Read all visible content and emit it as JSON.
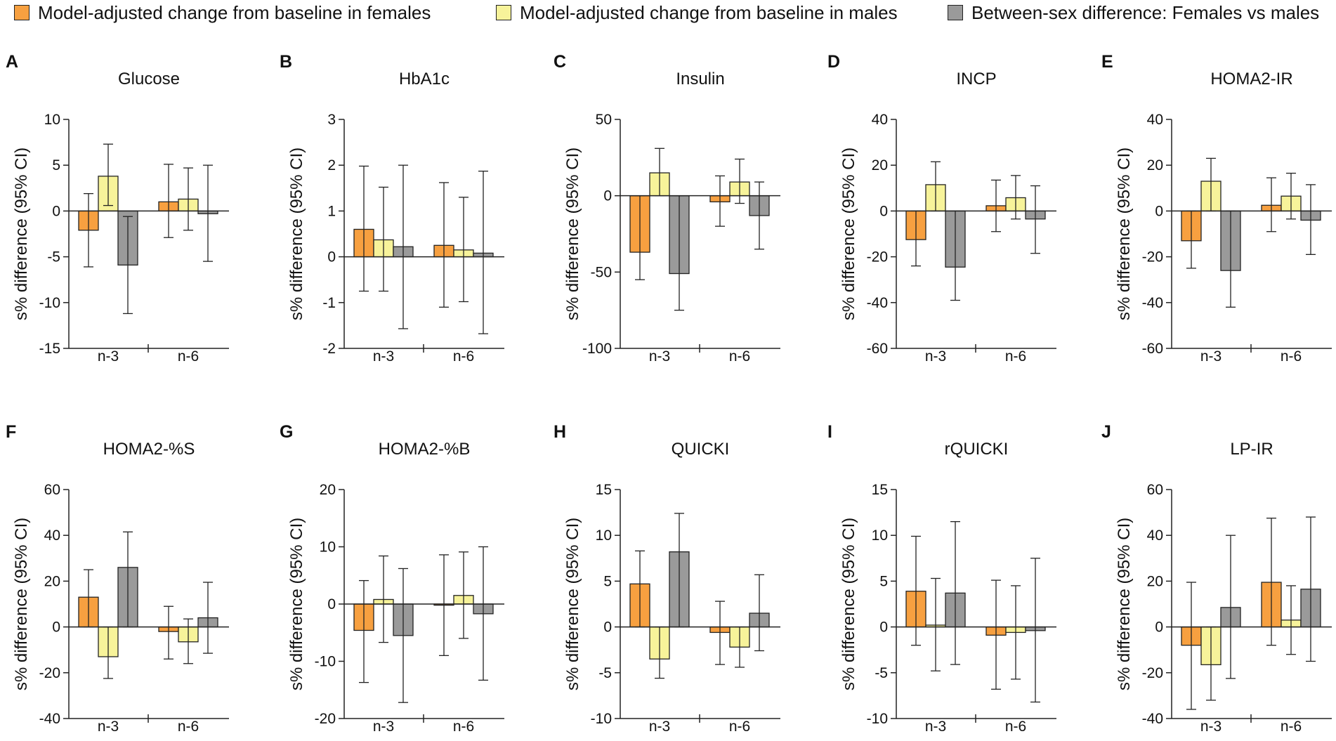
{
  "legend": [
    {
      "label": "Model-adjusted change from baseline in females",
      "color": "#F7A040"
    },
    {
      "label": "Model-adjusted change from baseline in males",
      "color": "#F7F39A"
    },
    {
      "label": "Between-sex difference: Females vs males",
      "color": "#9A9A9A"
    }
  ],
  "chart_data": [
    {
      "type": "bar",
      "panel": "A",
      "title": "Glucose",
      "ylabel": "s% difference (95% CI)",
      "categories": [
        "n-3",
        "n-6"
      ],
      "ylim": [
        -15,
        10
      ],
      "yticks": [
        -15,
        -10,
        -5,
        0,
        5,
        10
      ],
      "ytick_labels": [
        "-15",
        "-10",
        "-5",
        "0",
        "5",
        "10"
      ],
      "series": [
        {
          "name": "Model-adjusted change from baseline in females",
          "values": [
            -2.1,
            1.0
          ],
          "ci_low": [
            -6.1,
            -2.9
          ],
          "ci_high": [
            1.9,
            5.1
          ]
        },
        {
          "name": "Model-adjusted change from baseline in males",
          "values": [
            3.8,
            1.3
          ],
          "ci_low": [
            0.6,
            -2.1
          ],
          "ci_high": [
            7.3,
            4.7
          ]
        },
        {
          "name": "Between-sex difference: Females vs males",
          "values": [
            -5.9,
            -0.3
          ],
          "ci_low": [
            -11.2,
            -5.5
          ],
          "ci_high": [
            -0.6,
            5.0
          ]
        }
      ]
    },
    {
      "type": "bar",
      "panel": "B",
      "title": "HbA1c",
      "ylabel": "s% difference (95% CI)",
      "categories": [
        "n-3",
        "n-6"
      ],
      "ylim": [
        -2,
        3
      ],
      "yticks": [
        -2,
        -1,
        0,
        1,
        2,
        3
      ],
      "ytick_labels": [
        "-2",
        "-1",
        "0",
        "1",
        "2",
        "3"
      ],
      "series": [
        {
          "name": "Model-adjusted change from baseline in females",
          "values": [
            0.6,
            0.25
          ],
          "ci_low": [
            -0.75,
            -1.1
          ],
          "ci_high": [
            1.98,
            1.62
          ]
        },
        {
          "name": "Model-adjusted change from baseline in males",
          "values": [
            0.37,
            0.15
          ],
          "ci_low": [
            -0.75,
            -0.98
          ],
          "ci_high": [
            1.52,
            1.3
          ]
        },
        {
          "name": "Between-sex difference: Females vs males",
          "values": [
            0.22,
            0.08
          ],
          "ci_low": [
            -1.57,
            -1.68
          ],
          "ci_high": [
            2.0,
            1.87
          ]
        }
      ]
    },
    {
      "type": "bar",
      "panel": "C",
      "title": "Insulin",
      "ylabel": "s% difference (95% CI)",
      "categories": [
        "n-3",
        "n-6"
      ],
      "ylim": [
        -100,
        50
      ],
      "yticks": [
        -100,
        -50,
        0,
        50
      ],
      "ytick_labels": [
        "-100",
        "-50",
        "0",
        "50"
      ],
      "series": [
        {
          "name": "Model-adjusted change from baseline in females",
          "values": [
            -37,
            -4
          ],
          "ci_low": [
            -55,
            -20
          ],
          "ci_high": [
            0,
            13
          ]
        },
        {
          "name": "Model-adjusted change from baseline in males",
          "values": [
            15,
            9
          ],
          "ci_low": [
            0,
            -5
          ],
          "ci_high": [
            31,
            24
          ]
        },
        {
          "name": "Between-sex difference: Females vs males",
          "values": [
            -51,
            -13
          ],
          "ci_low": [
            -75,
            -35
          ],
          "ci_high": [
            0,
            9
          ]
        }
      ]
    },
    {
      "type": "bar",
      "panel": "D",
      "title": "INCP",
      "ylabel": "s% difference (95% CI)",
      "categories": [
        "n-3",
        "n-6"
      ],
      "ylim": [
        -60,
        40
      ],
      "yticks": [
        -60,
        -40,
        -20,
        0,
        20,
        40
      ],
      "ytick_labels": [
        "-60",
        "-40",
        "-20",
        "0",
        "20",
        "40"
      ],
      "series": [
        {
          "name": "Model-adjusted change from baseline in females",
          "values": [
            -12.5,
            2.3
          ],
          "ci_low": [
            -24,
            -9
          ],
          "ci_high": [
            0,
            13.5
          ]
        },
        {
          "name": "Model-adjusted change from baseline in males",
          "values": [
            11.5,
            5.8
          ],
          "ci_low": [
            0,
            -3.5
          ],
          "ci_high": [
            21.5,
            15.5
          ]
        },
        {
          "name": "Between-sex difference: Females vs males",
          "values": [
            -24.5,
            -3.5
          ],
          "ci_low": [
            -39,
            -18.5
          ],
          "ci_high": [
            0,
            11
          ]
        }
      ]
    },
    {
      "type": "bar",
      "panel": "E",
      "title": "HOMA2-IR",
      "ylabel": "s% difference (95% CI)",
      "categories": [
        "n-3",
        "n-6"
      ],
      "ylim": [
        -60,
        40
      ],
      "yticks": [
        -60,
        -40,
        -20,
        0,
        20,
        40
      ],
      "ytick_labels": [
        "-60",
        "-40",
        "-20",
        "0",
        "20",
        "40"
      ],
      "series": [
        {
          "name": "Model-adjusted change from baseline in females",
          "values": [
            -13,
            2.5
          ],
          "ci_low": [
            -25,
            -9
          ],
          "ci_high": [
            0,
            14.5
          ]
        },
        {
          "name": "Model-adjusted change from baseline in males",
          "values": [
            13,
            6.5
          ],
          "ci_low": [
            0,
            -3.5
          ],
          "ci_high": [
            23,
            16.5
          ]
        },
        {
          "name": "Between-sex difference: Females vs males",
          "values": [
            -26,
            -4
          ],
          "ci_low": [
            -42,
            -19
          ],
          "ci_high": [
            0,
            11.5
          ]
        }
      ]
    },
    {
      "type": "bar",
      "panel": "F",
      "title": "HOMA2-%S",
      "ylabel": "s% difference (95% CI)",
      "categories": [
        "n-3",
        "n-6"
      ],
      "ylim": [
        -40,
        60
      ],
      "yticks": [
        -40,
        -20,
        0,
        20,
        40,
        60
      ],
      "ytick_labels": [
        "-40",
        "-20",
        "0",
        "20",
        "40",
        "60"
      ],
      "series": [
        {
          "name": "Model-adjusted change from baseline in females",
          "values": [
            13,
            -2
          ],
          "ci_low": [
            0,
            -14
          ],
          "ci_high": [
            25,
            9
          ]
        },
        {
          "name": "Model-adjusted change from baseline in males",
          "values": [
            -13,
            -6.5
          ],
          "ci_low": [
            -22.5,
            -16
          ],
          "ci_high": [
            0,
            3.5
          ]
        },
        {
          "name": "Between-sex difference: Females vs males",
          "values": [
            26,
            4
          ],
          "ci_low": [
            0,
            -11.5
          ],
          "ci_high": [
            41.5,
            19.5
          ]
        }
      ]
    },
    {
      "type": "bar",
      "panel": "G",
      "title": "HOMA2-%B",
      "ylabel": "s% difference (95% CI)",
      "categories": [
        "n-3",
        "n-6"
      ],
      "ylim": [
        -20,
        20
      ],
      "yticks": [
        -20,
        -10,
        0,
        10,
        20
      ],
      "ytick_labels": [
        "-20",
        "-10",
        "0",
        "10",
        "20"
      ],
      "series": [
        {
          "name": "Model-adjusted change from baseline in females",
          "values": [
            -4.6,
            -0.2
          ],
          "ci_low": [
            -13.7,
            -9
          ],
          "ci_high": [
            4.1,
            8.6
          ]
        },
        {
          "name": "Model-adjusted change from baseline in males",
          "values": [
            0.8,
            1.5
          ],
          "ci_low": [
            -6.7,
            -6
          ],
          "ci_high": [
            8.4,
            9.1
          ]
        },
        {
          "name": "Between-sex difference: Females vs males",
          "values": [
            -5.5,
            -1.7
          ],
          "ci_low": [
            -17.2,
            -13.3
          ],
          "ci_high": [
            6.2,
            10
          ]
        }
      ]
    },
    {
      "type": "bar",
      "panel": "H",
      "title": "QUICKI",
      "ylabel": "s% difference (95% CI)",
      "categories": [
        "n-3",
        "n-6"
      ],
      "ylim": [
        -10,
        15
      ],
      "yticks": [
        -10,
        -5,
        0,
        5,
        10,
        15
      ],
      "ytick_labels": [
        "-10",
        "-5",
        "0",
        "5",
        "10",
        "15"
      ],
      "series": [
        {
          "name": "Model-adjusted change from baseline in females",
          "values": [
            4.7,
            -0.6
          ],
          "ci_low": [
            0,
            -4.1
          ],
          "ci_high": [
            8.3,
            2.8
          ]
        },
        {
          "name": "Model-adjusted change from baseline in males",
          "values": [
            -3.5,
            -2.2
          ],
          "ci_low": [
            -5.6,
            -4.4
          ],
          "ci_high": [
            0,
            0
          ]
        },
        {
          "name": "Between-sex difference: Females vs males",
          "values": [
            8.2,
            1.5
          ],
          "ci_low": [
            0,
            -2.6
          ],
          "ci_high": [
            12.4,
            5.7
          ]
        }
      ]
    },
    {
      "type": "bar",
      "panel": "I",
      "title": "rQUICKI",
      "ylabel": "s% difference (95% CI)",
      "categories": [
        "n-3",
        "n-6"
      ],
      "ylim": [
        -10,
        15
      ],
      "yticks": [
        -10,
        -5,
        0,
        5,
        10,
        15
      ],
      "ytick_labels": [
        "-10",
        "-5",
        "0",
        "5",
        "10",
        "15"
      ],
      "series": [
        {
          "name": "Model-adjusted change from baseline in females",
          "values": [
            3.9,
            -0.9
          ],
          "ci_low": [
            -2,
            -6.8
          ],
          "ci_high": [
            9.9,
            5.1
          ]
        },
        {
          "name": "Model-adjusted change from baseline in males",
          "values": [
            0.2,
            -0.6
          ],
          "ci_low": [
            -4.8,
            -5.7
          ],
          "ci_high": [
            5.3,
            4.5
          ]
        },
        {
          "name": "Between-sex difference: Females vs males",
          "values": [
            3.7,
            -0.4
          ],
          "ci_low": [
            -4.1,
            -8.2
          ],
          "ci_high": [
            11.5,
            7.5
          ]
        }
      ]
    },
    {
      "type": "bar",
      "panel": "J",
      "title": "LP-IR",
      "ylabel": "s% difference (95% CI)",
      "categories": [
        "n-3",
        "n-6"
      ],
      "ylim": [
        -40,
        60
      ],
      "yticks": [
        -40,
        -20,
        0,
        20,
        40,
        60
      ],
      "ytick_labels": [
        "-40",
        "-20",
        "0",
        "20",
        "40",
        "60"
      ],
      "series": [
        {
          "name": "Model-adjusted change from baseline in females",
          "values": [
            -8,
            19.5
          ],
          "ci_low": [
            -36,
            -8
          ],
          "ci_high": [
            19.5,
            47.5
          ]
        },
        {
          "name": "Model-adjusted change from baseline in males",
          "values": [
            -16.5,
            3
          ],
          "ci_low": [
            -32,
            -12
          ],
          "ci_high": [
            0,
            18
          ]
        },
        {
          "name": "Between-sex difference: Females vs males",
          "values": [
            8.5,
            16.5
          ],
          "ci_low": [
            -22.5,
            -15
          ],
          "ci_high": [
            40,
            48
          ]
        }
      ]
    }
  ]
}
